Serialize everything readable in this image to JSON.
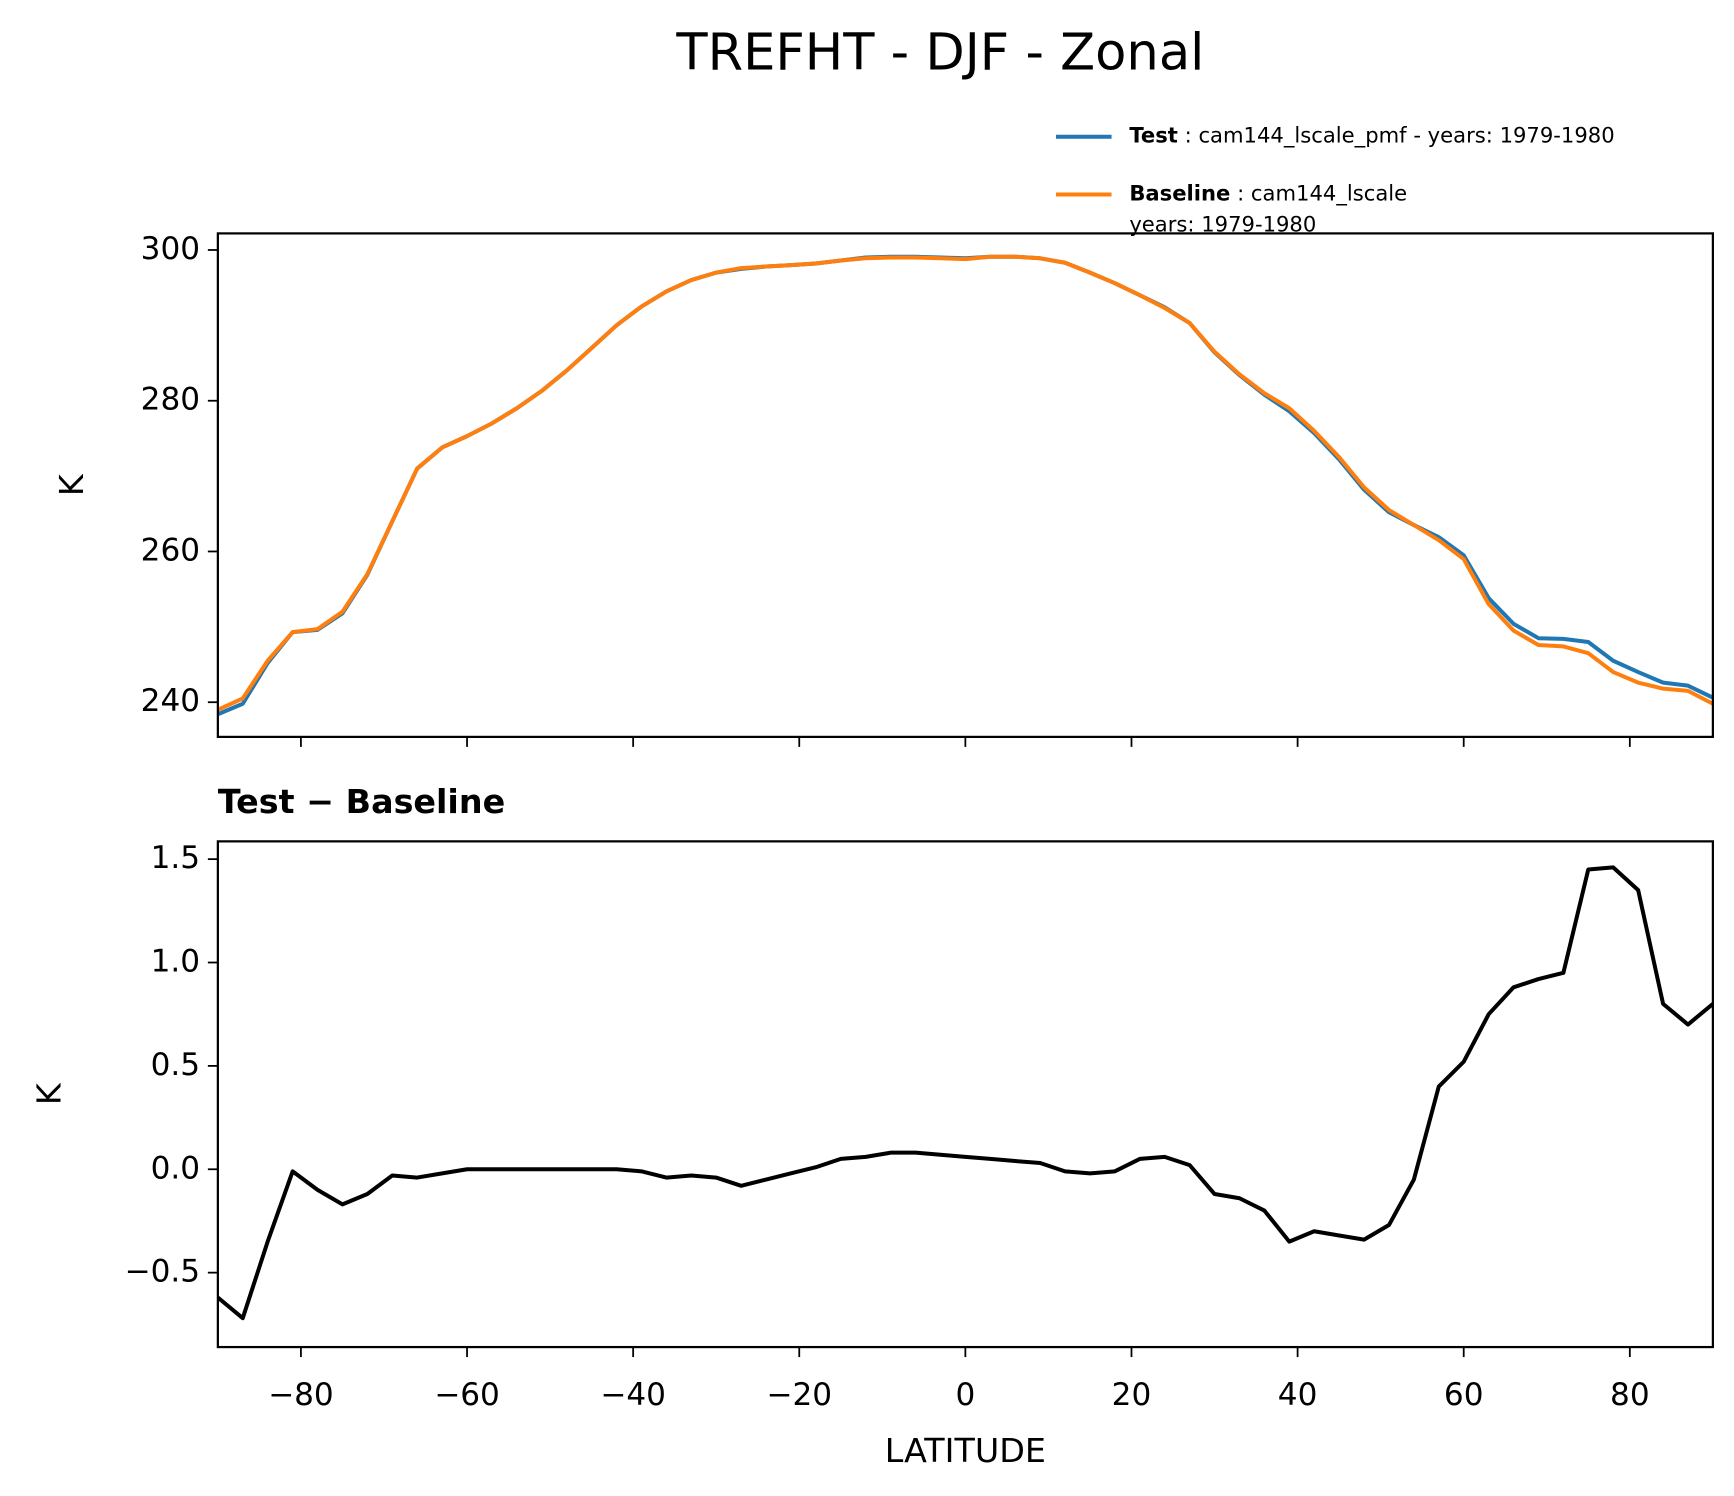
{
  "chart_data": [
    {
      "type": "line",
      "title": "TREFHT - DJF - Zonal",
      "ylabel": "K",
      "x": [
        -90,
        -87,
        -84,
        -81,
        -78,
        -75,
        -72,
        -69,
        -66,
        -63,
        -60,
        -57,
        -54,
        -51,
        -48,
        -45,
        -42,
        -39,
        -36,
        -33,
        -30,
        -27,
        -24,
        -21,
        -18,
        -15,
        -12,
        -9,
        -6,
        -3,
        0,
        3,
        6,
        9,
        12,
        15,
        18,
        21,
        24,
        27,
        30,
        33,
        36,
        39,
        42,
        45,
        48,
        51,
        54,
        57,
        60,
        63,
        66,
        69,
        72,
        75,
        78,
        81,
        84,
        87,
        90
      ],
      "series": [
        {
          "name": "Test",
          "description": [
            "cam144_lscale_pmf - years: 1979-1980"
          ],
          "color": "#1f77b4",
          "values": [
            238.4,
            239.8,
            245.2,
            249.3,
            249.6,
            251.8,
            256.9,
            264,
            271,
            273.8,
            275.3,
            277,
            279,
            281.3,
            284,
            287,
            290,
            292.5,
            294.5,
            296,
            297,
            297.5,
            297.8,
            298,
            298.2,
            298.6,
            299,
            299.1,
            299.1,
            299,
            298.9,
            299.1,
            299.1,
            298.9,
            298.3,
            297,
            295.6,
            294,
            292.4,
            290.3,
            286.4,
            283.4,
            280.8,
            278.6,
            275.7,
            272.2,
            268.2,
            265.2,
            263.5,
            261.9,
            259.5,
            253.8,
            250.4,
            248.5,
            248.4,
            248,
            245.5,
            244,
            242.6,
            242.2,
            240.6
          ]
        },
        {
          "name": "Baseline",
          "description": [
            "cam144_lscale",
            "years: 1979-1980"
          ],
          "color": "#ff7f0e",
          "values": [
            239,
            240.5,
            245.5,
            249.3,
            249.7,
            252,
            257,
            264,
            271,
            273.8,
            275.3,
            277,
            279,
            281.3,
            284,
            287,
            290,
            292.5,
            294.5,
            296,
            297,
            297.6,
            297.8,
            298,
            298.2,
            298.6,
            298.9,
            299,
            299,
            298.9,
            298.8,
            299.1,
            299.1,
            298.9,
            298.3,
            297,
            295.6,
            294,
            292.3,
            290.3,
            286.5,
            283.5,
            281,
            279,
            276,
            272.5,
            268.5,
            265.5,
            263.5,
            261.5,
            259,
            253,
            249.5,
            247.6,
            247.4,
            246.5,
            244,
            242.6,
            241.8,
            241.5,
            239.8
          ]
        }
      ],
      "xlim": [
        -90,
        90
      ],
      "xticks": [
        -80,
        -60,
        -40,
        -20,
        0,
        20,
        40,
        60,
        80
      ],
      "ylim": [
        235.4,
        302.2
      ],
      "yticks": [
        240,
        260,
        280,
        300
      ],
      "legend": "upper right"
    },
    {
      "type": "line",
      "title": "Test − Baseline",
      "xlabel": "LATITUDE",
      "ylabel": "K",
      "color": "#000000",
      "x": [
        -90,
        -87,
        -84,
        -81,
        -78,
        -75,
        -72,
        -69,
        -66,
        -63,
        -60,
        -57,
        -54,
        -51,
        -48,
        -45,
        -42,
        -39,
        -36,
        -33,
        -30,
        -27,
        -24,
        -21,
        -18,
        -15,
        -12,
        -9,
        -6,
        -3,
        0,
        3,
        6,
        9,
        12,
        15,
        18,
        21,
        24,
        27,
        30,
        33,
        36,
        39,
        42,
        45,
        48,
        51,
        54,
        57,
        60,
        63,
        66,
        69,
        72,
        75,
        78,
        81,
        84,
        87,
        90
      ],
      "values": [
        -0.62,
        -0.72,
        -0.35,
        -0.01,
        -0.1,
        -0.17,
        -0.12,
        -0.03,
        -0.04,
        -0.02,
        0,
        0,
        0,
        0,
        0,
        0,
        0,
        -0.01,
        -0.04,
        -0.03,
        -0.04,
        -0.08,
        -0.05,
        -0.02,
        0.01,
        0.05,
        0.06,
        0.08,
        0.08,
        0.07,
        0.06,
        0.05,
        0.04,
        0.03,
        -0.01,
        -0.02,
        -0.01,
        0.05,
        0.06,
        0.02,
        -0.12,
        -0.14,
        -0.2,
        -0.35,
        -0.3,
        -0.32,
        -0.34,
        -0.27,
        -0.05,
        0.4,
        0.52,
        0.75,
        0.88,
        0.92,
        0.95,
        1.45,
        1.46,
        1.35,
        0.8,
        0.7,
        0.8
      ],
      "xlim": [
        -90,
        90
      ],
      "xticks": [
        {
          "value": -80,
          "label": "−80"
        },
        {
          "value": -60,
          "label": "−60"
        },
        {
          "value": -40,
          "label": "−40"
        },
        {
          "value": -20,
          "label": "−20"
        },
        0,
        20,
        40,
        60,
        80
      ],
      "ylim": [
        -0.86,
        1.586
      ],
      "yticks": [
        {
          "value": -0.5,
          "label": "−0.5"
        },
        {
          "value": 0,
          "label": "0.0"
        },
        0.5,
        {
          "value": 1,
          "label": "1.0"
        },
        1.5
      ]
    }
  ]
}
